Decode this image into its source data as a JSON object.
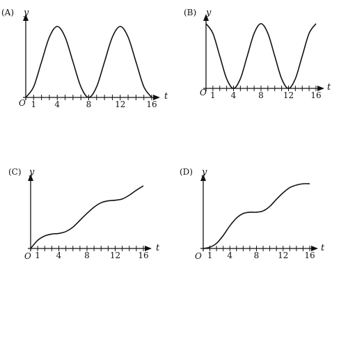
{
  "chart_data": [
    {
      "type": "line",
      "panel_label": "(A)",
      "xlabel": "t",
      "ylabel": "y",
      "origin_label": "O",
      "xlim": [
        0,
        16.5
      ],
      "ylim": [
        0,
        1.05
      ],
      "x_ticks_labeled": [
        "1",
        "4",
        "8",
        "12",
        "16"
      ],
      "x_tick_values": [
        1,
        4,
        8,
        12,
        16
      ],
      "grid": false,
      "x": [
        0,
        1,
        2,
        3,
        4,
        5,
        6,
        7,
        8,
        9,
        10,
        11,
        12,
        13,
        14,
        15,
        16
      ],
      "y": [
        0,
        0.15,
        0.5,
        0.85,
        1,
        0.85,
        0.5,
        0.15,
        0,
        0.15,
        0.5,
        0.85,
        1,
        0.85,
        0.5,
        0.15,
        0
      ]
    },
    {
      "type": "line",
      "panel_label": "(B)",
      "xlabel": "t",
      "ylabel": "y",
      "origin_label": "O",
      "xlim": [
        0,
        16.5
      ],
      "ylim": [
        0,
        1.05
      ],
      "x_ticks_labeled": [
        "1",
        "4",
        "8",
        "12",
        "16"
      ],
      "x_tick_values": [
        1,
        4,
        8,
        12,
        16
      ],
      "grid": false,
      "x": [
        0,
        1,
        2,
        3,
        4,
        5,
        6,
        7,
        8,
        9,
        10,
        11,
        12,
        13,
        14,
        15,
        16
      ],
      "y": [
        1,
        0.85,
        0.5,
        0.15,
        0,
        0.15,
        0.5,
        0.85,
        1,
        0.85,
        0.5,
        0.15,
        0,
        0.15,
        0.5,
        0.85,
        1
      ]
    },
    {
      "type": "line",
      "panel_label": "(C)",
      "xlabel": "t",
      "ylabel": "y",
      "origin_label": "O",
      "xlim": [
        0,
        16.5
      ],
      "ylim": [
        0,
        1.05
      ],
      "x_ticks_labeled": [
        "1",
        "4",
        "8",
        "12",
        "16"
      ],
      "x_tick_values": [
        1,
        4,
        8,
        12,
        16
      ],
      "grid": false,
      "x": [
        0,
        1,
        2,
        3,
        4,
        5,
        6,
        7,
        8,
        9,
        10,
        11,
        12,
        13,
        14,
        15,
        16
      ],
      "y": [
        0,
        0.13,
        0.2,
        0.23,
        0.24,
        0.27,
        0.34,
        0.45,
        0.56,
        0.66,
        0.73,
        0.76,
        0.77,
        0.79,
        0.85,
        0.93,
        1
      ]
    },
    {
      "type": "line",
      "panel_label": "(D)",
      "xlabel": "t",
      "ylabel": "y",
      "origin_label": "O",
      "xlim": [
        0,
        16.5
      ],
      "ylim": [
        0,
        1.05
      ],
      "x_ticks_labeled": [
        "1",
        "4",
        "8",
        "12",
        "16"
      ],
      "x_tick_values": [
        1,
        4,
        8,
        12,
        16
      ],
      "grid": false,
      "x": [
        0,
        1,
        2,
        3,
        4,
        5,
        6,
        7,
        8,
        9,
        10,
        11,
        12,
        13,
        14,
        15,
        16
      ],
      "y": [
        0,
        0.02,
        0.08,
        0.2,
        0.35,
        0.47,
        0.54,
        0.56,
        0.56,
        0.58,
        0.65,
        0.76,
        0.86,
        0.94,
        0.98,
        1,
        1
      ]
    }
  ]
}
